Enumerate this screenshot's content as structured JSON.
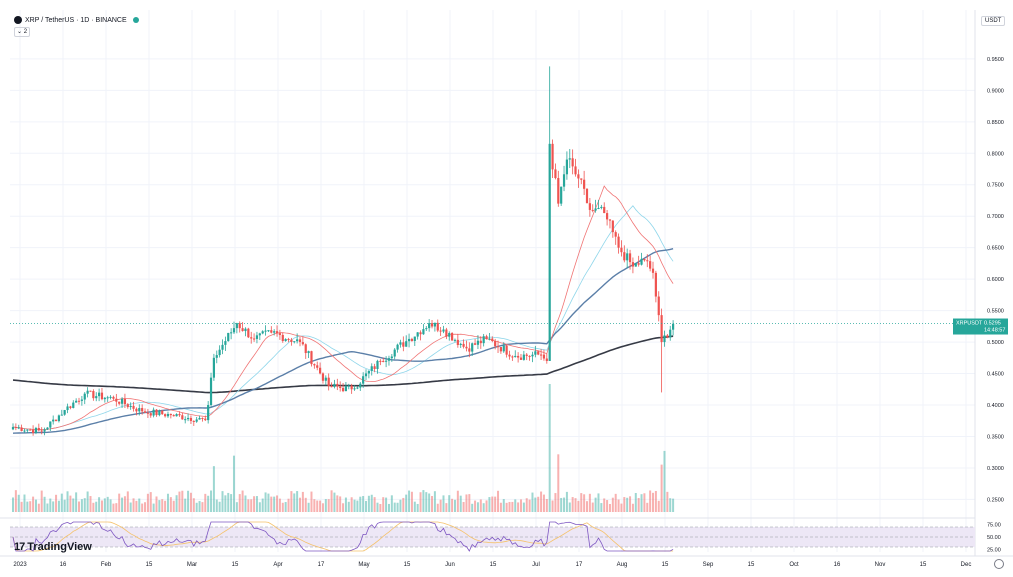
{
  "header": {
    "symbol": "XRP / TetherUS · 1D · BINANCE",
    "collapse_label": "⌄ 2"
  },
  "currency_button": "USDT",
  "logo_text": "TradingView",
  "colors": {
    "up": "#26a69a",
    "down": "#ef5350",
    "ma_slow": "#363a45",
    "ma_mid": "#5b7fa8",
    "ma_fast": "#f07474",
    "ma_cyan": "#8fd6ea",
    "rsi_line": "#7e57c2",
    "rsi_ma": "#f5c26b",
    "rsi_band": "#ede7f6",
    "price_line": "#26a69a"
  },
  "chart_data": {
    "type": "candlestick",
    "y_axis_ticks": [
      "0.9500",
      "0.9000",
      "0.8500",
      "0.8000",
      "0.7500",
      "0.7000",
      "0.6500",
      "0.6000",
      "0.5500",
      "0.5000",
      "0.4500",
      "0.4000",
      "0.3500",
      "0.3000",
      "0.2500"
    ],
    "ylim": [
      0.23,
      0.98
    ],
    "x_axis_ticks": [
      "2023",
      "16",
      "Feb",
      "15",
      "Mar",
      "15",
      "Apr",
      "17",
      "May",
      "15",
      "Jun",
      "15",
      "Jul",
      "17",
      "Aug",
      "15",
      "Sep",
      "15",
      "Oct",
      "16",
      "Nov",
      "15",
      "Dec"
    ],
    "current_price": {
      "symbol": "XRPUSDT",
      "value": "0.5295",
      "countdown": "14:48:57"
    },
    "anchors": [
      {
        "d": 0,
        "c": 0.365
      },
      {
        "d": 10,
        "c": 0.358
      },
      {
        "d": 18,
        "c": 0.392
      },
      {
        "d": 25,
        "c": 0.418
      },
      {
        "d": 35,
        "c": 0.41
      },
      {
        "d": 45,
        "c": 0.39
      },
      {
        "d": 55,
        "c": 0.384
      },
      {
        "d": 67,
        "c": 0.376
      },
      {
        "d": 68,
        "c": 0.4
      },
      {
        "d": 70,
        "c": 0.475
      },
      {
        "d": 78,
        "c": 0.53
      },
      {
        "d": 84,
        "c": 0.505
      },
      {
        "d": 90,
        "c": 0.515
      },
      {
        "d": 100,
        "c": 0.5
      },
      {
        "d": 110,
        "c": 0.43
      },
      {
        "d": 118,
        "c": 0.425
      },
      {
        "d": 128,
        "c": 0.47
      },
      {
        "d": 138,
        "c": 0.505
      },
      {
        "d": 145,
        "c": 0.53
      },
      {
        "d": 150,
        "c": 0.52
      },
      {
        "d": 158,
        "c": 0.49
      },
      {
        "d": 165,
        "c": 0.505
      },
      {
        "d": 175,
        "c": 0.478
      },
      {
        "d": 184,
        "c": 0.48
      },
      {
        "d": 186,
        "c": 0.47
      },
      {
        "d": 187,
        "c": 0.815
      },
      {
        "d": 190,
        "c": 0.72
      },
      {
        "d": 193,
        "c": 0.79
      },
      {
        "d": 197,
        "c": 0.76
      },
      {
        "d": 201,
        "c": 0.71
      },
      {
        "d": 206,
        "c": 0.705
      },
      {
        "d": 211,
        "c": 0.65
      },
      {
        "d": 216,
        "c": 0.62
      },
      {
        "d": 220,
        "c": 0.63
      },
      {
        "d": 223,
        "c": 0.61
      },
      {
        "d": 226,
        "c": 0.5
      },
      {
        "d": 230,
        "c": 0.529
      }
    ],
    "volume_spikes_days": [
      70,
      77,
      187,
      190,
      226,
      227
    ],
    "moving_averages": [
      "MA 200",
      "MA 50",
      "MA 20",
      "MA 10"
    ],
    "rsi": {
      "levels": [
        "75.00",
        "50.00",
        "25.00"
      ],
      "band": [
        30,
        70
      ]
    }
  }
}
